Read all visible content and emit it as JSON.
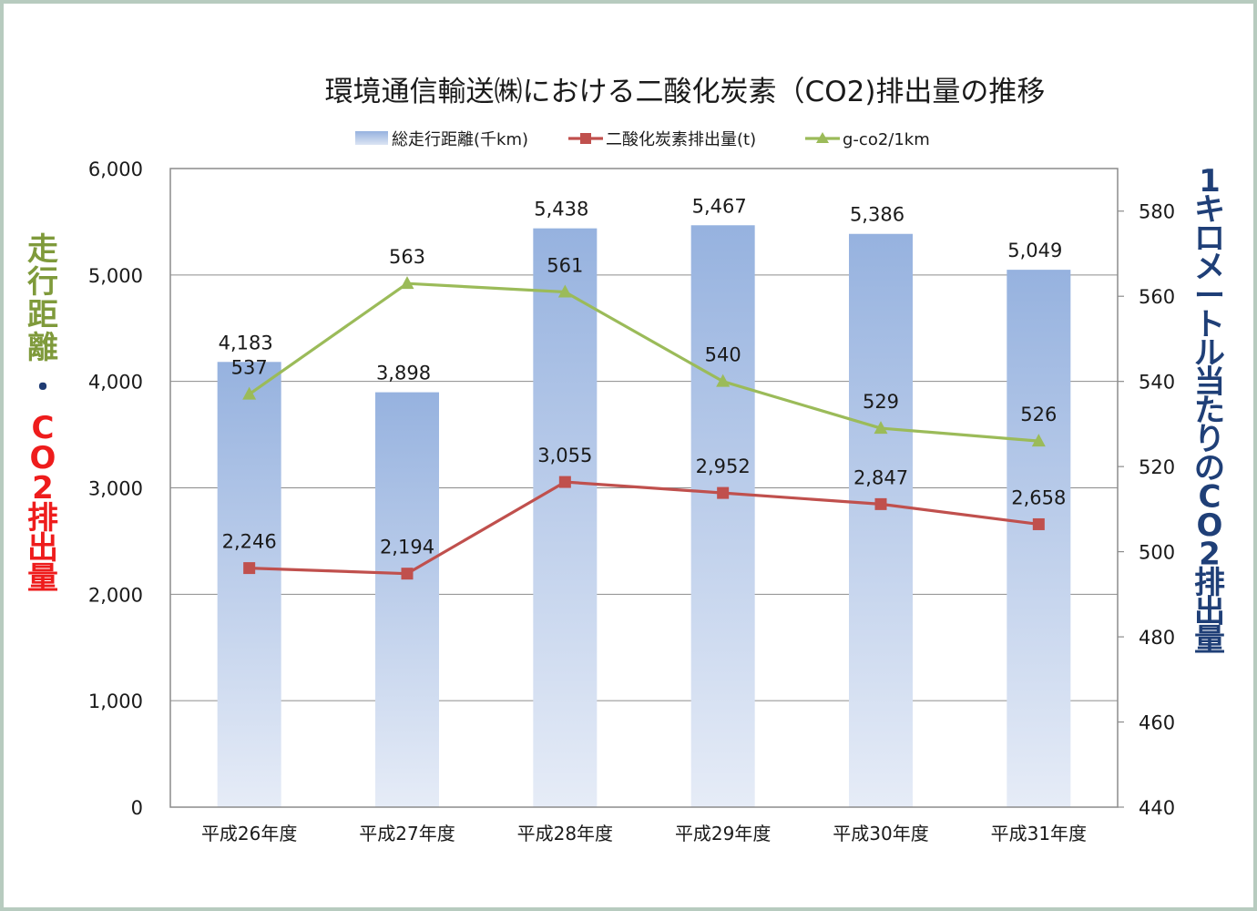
{
  "chart_data": {
    "type": "bar",
    "title": "環境通信輸送㈱における二酸化炭素（CO2)排出量の推移",
    "categories": [
      "平成26年度",
      "平成27年度",
      "平成28年度",
      "平成29年度",
      "平成30年度",
      "平成31年度"
    ],
    "series": [
      {
        "name": "総走行距離(千km)",
        "type": "bar",
        "axis": "left",
        "values": [
          4183,
          3898,
          5438,
          5467,
          5386,
          5049
        ],
        "labels": [
          "4,183",
          "3,898",
          "5,438",
          "5,467",
          "5,386",
          "5,049"
        ],
        "color": "#9db6e1"
      },
      {
        "name": "二酸化炭素排出量(t)",
        "type": "line",
        "axis": "left",
        "values": [
          2246,
          2194,
          3055,
          2952,
          2847,
          2658
        ],
        "labels": [
          "2,246",
          "2,194",
          "3,055",
          "2,952",
          "2,847",
          "2,658"
        ],
        "color": "#c0504d"
      },
      {
        "name": "g-co2/1km",
        "type": "line",
        "axis": "right",
        "values": [
          537,
          563,
          561,
          540,
          529,
          526
        ],
        "labels": [
          "537",
          "563",
          "561",
          "540",
          "529",
          "526"
        ],
        "color": "#9bbb59"
      }
    ],
    "y_left": {
      "min": 0,
      "max": 6000,
      "step": 1000,
      "ticks": [
        "0",
        "1,000",
        "2,000",
        "3,000",
        "4,000",
        "5,000",
        "6,000"
      ]
    },
    "y_right": {
      "min": 440,
      "max": 590,
      "step": 20,
      "ticks": [
        "440",
        "460",
        "480",
        "500",
        "520",
        "540",
        "560",
        "580"
      ]
    },
    "left_axis_title": {
      "part1": "走行距離",
      "separator": "・",
      "part2": "CO2排出量"
    },
    "right_axis_title": "1キロメートル当たりのCO2排出量",
    "legend_position": "top",
    "grid": true
  }
}
